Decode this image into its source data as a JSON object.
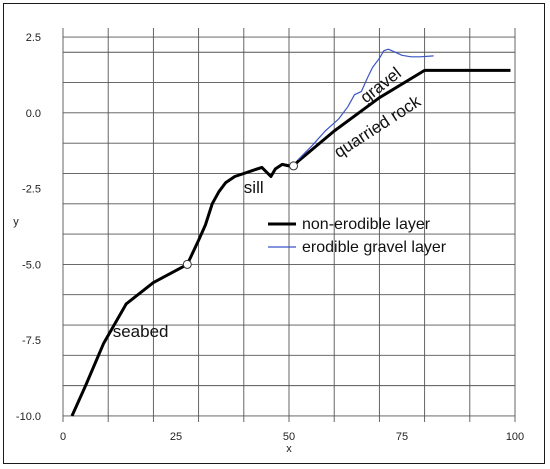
{
  "chart_data": {
    "type": "line",
    "xlabel": "x",
    "ylabel": "y",
    "xlim": [
      0,
      100
    ],
    "ylim": [
      -10.0,
      2.5
    ],
    "x_ticks": [
      0,
      25,
      50,
      75,
      100
    ],
    "y_ticks": [
      2.5,
      0.0,
      -2.5,
      -5.0,
      -7.5,
      -10.0
    ],
    "y_tick_labels": [
      "2.5",
      "0.0",
      "-2.5",
      "-5.0",
      "-7.5",
      "-10.0"
    ],
    "grid": true,
    "legend_position": "center-right",
    "series": [
      {
        "name": "non-erodible layer",
        "color": "#000000",
        "x": [
          2,
          5,
          9,
          14,
          20,
          27.5,
          30,
          31.5,
          33,
          34.5,
          36,
          38,
          40,
          42,
          44,
          46,
          47,
          48.5,
          50,
          51,
          52,
          60,
          70,
          80,
          90,
          99
        ],
        "y": [
          -10.0,
          -9.0,
          -7.6,
          -6.3,
          -5.6,
          -5.0,
          -4.2,
          -3.7,
          -3.0,
          -2.6,
          -2.3,
          -2.1,
          -2.0,
          -1.9,
          -1.8,
          -2.1,
          -1.85,
          -1.7,
          -1.75,
          -1.75,
          -1.6,
          -0.6,
          0.5,
          1.4,
          1.4,
          1.4
        ]
      },
      {
        "name": "erodible gravel layer",
        "color": "#3a54c7",
        "x": [
          52,
          55,
          58,
          61,
          63,
          64.5,
          66,
          67.5,
          68.5,
          70,
          71,
          72,
          73.5,
          75,
          77,
          79,
          82
        ],
        "y": [
          -1.55,
          -1.1,
          -0.6,
          -0.2,
          0.2,
          0.6,
          0.7,
          1.2,
          1.5,
          1.8,
          2.05,
          2.1,
          2.0,
          1.9,
          1.85,
          1.85,
          1.88
        ]
      }
    ],
    "markers": [
      {
        "x": 27.5,
        "y": -5.0
      },
      {
        "x": 51,
        "y": -1.75
      }
    ],
    "annotations": [
      {
        "text": "seabed",
        "x": 11,
        "y": -7.4,
        "angle": 0
      },
      {
        "text": "sill",
        "x": 40,
        "y": -2.65,
        "angle": 0
      },
      {
        "text": "gravel",
        "x": 67,
        "y": 0.3,
        "angle": -38
      },
      {
        "text": "quarried rock",
        "x": 61,
        "y": -1.5,
        "angle": -33
      }
    ]
  }
}
